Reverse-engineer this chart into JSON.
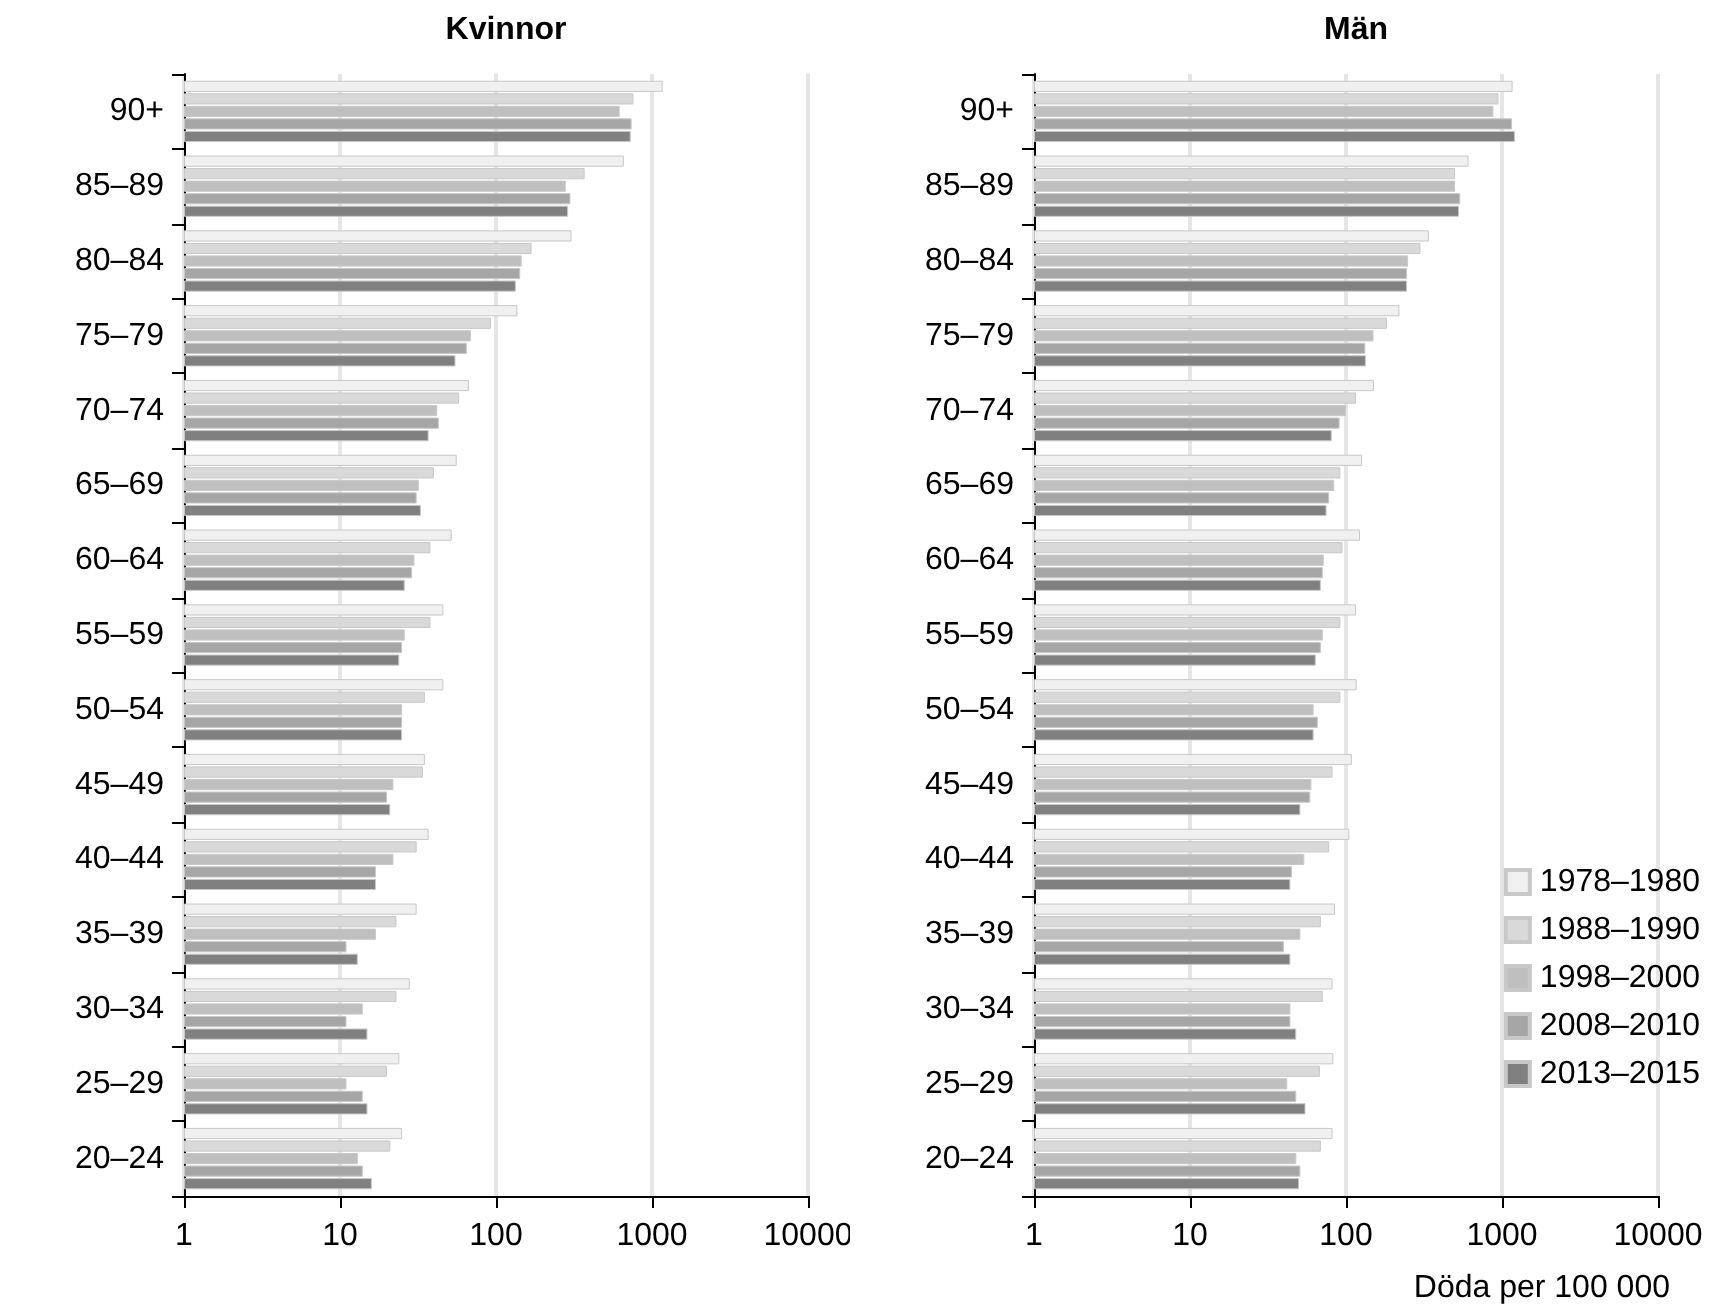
{
  "chart_data": [
    {
      "type": "bar",
      "orientation": "horizontal",
      "title": "Kvinnor",
      "categories": [
        "90+",
        "85–89",
        "80–84",
        "75–79",
        "70–74",
        "65–69",
        "60–64",
        "55–59",
        "50–54",
        "45–49",
        "40–44",
        "35–39",
        "30–34",
        "25–29",
        "20–24"
      ],
      "series": [
        {
          "color": "#f0f0f0",
          "values": [
            1170,
            660,
            305,
            137,
            67,
            56,
            52,
            46,
            46,
            35,
            37,
            31,
            28,
            24,
            25
          ]
        },
        {
          "color": "#d9d9d9",
          "values": [
            760,
            370,
            169,
            93,
            58,
            40,
            38,
            38,
            35,
            34,
            31,
            23,
            23,
            20,
            21
          ]
        },
        {
          "color": "#bfbfbf",
          "values": [
            620,
            280,
            146,
            69,
            42,
            32,
            30,
            26,
            25,
            22,
            22,
            17,
            14,
            11,
            13
          ]
        },
        {
          "color": "#a6a6a6",
          "values": [
            740,
            300,
            143,
            65,
            43,
            31,
            29,
            25,
            25,
            20,
            17,
            11,
            11,
            14,
            14
          ]
        },
        {
          "color": "#808080",
          "values": [
            730,
            290,
            134,
            55,
            37,
            33,
            26,
            24,
            25,
            21,
            17,
            13,
            15,
            15,
            16
          ]
        }
      ],
      "log": "x",
      "xlim": [
        1,
        10000
      ],
      "xticks": [
        1,
        10,
        100,
        1000,
        10000
      ],
      "grid": "x",
      "legend": false
    },
    {
      "type": "bar",
      "orientation": "horizontal",
      "title": "Män",
      "xlabel": "Döda per 100 000",
      "categories": [
        "90+",
        "85–89",
        "80–84",
        "75–79",
        "70–74",
        "65–69",
        "60–64",
        "55–59",
        "50–54",
        "45–49",
        "40–44",
        "35–39",
        "30–34",
        "25–29",
        "20–24"
      ],
      "series": [
        {
          "name": "1978–1980",
          "color": "#f0f0f0",
          "values": [
            1170,
            610,
            340,
            220,
            151,
            127,
            123,
            116,
            117,
            109,
            105,
            85,
            82,
            83,
            82
          ]
        },
        {
          "name": "1988–1990",
          "color": "#d9d9d9",
          "values": [
            950,
            500,
            300,
            183,
            116,
            92,
            95,
            92,
            92,
            82,
            78,
            69,
            71,
            68,
            69
          ]
        },
        {
          "name": "1998–2000",
          "color": "#bfbfbf",
          "values": [
            880,
            500,
            250,
            150,
            100,
            84,
            72,
            71,
            62,
            60,
            54,
            51,
            44,
            42,
            48
          ]
        },
        {
          "name": "2008–2010",
          "color": "#a6a6a6",
          "values": [
            1160,
            540,
            246,
            133,
            91,
            78,
            71,
            69,
            66,
            59,
            45,
            40,
            44,
            48,
            51
          ]
        },
        {
          "name": "2013–2015",
          "color": "#808080",
          "values": [
            1210,
            530,
            246,
            134,
            81,
            75,
            69,
            64,
            62,
            51,
            44,
            44,
            48,
            55,
            50
          ]
        }
      ],
      "log": "x",
      "xlim": [
        1,
        10000
      ],
      "xticks": [
        1,
        10,
        100,
        1000,
        10000
      ],
      "grid": "x",
      "legend": "bottom right"
    }
  ]
}
